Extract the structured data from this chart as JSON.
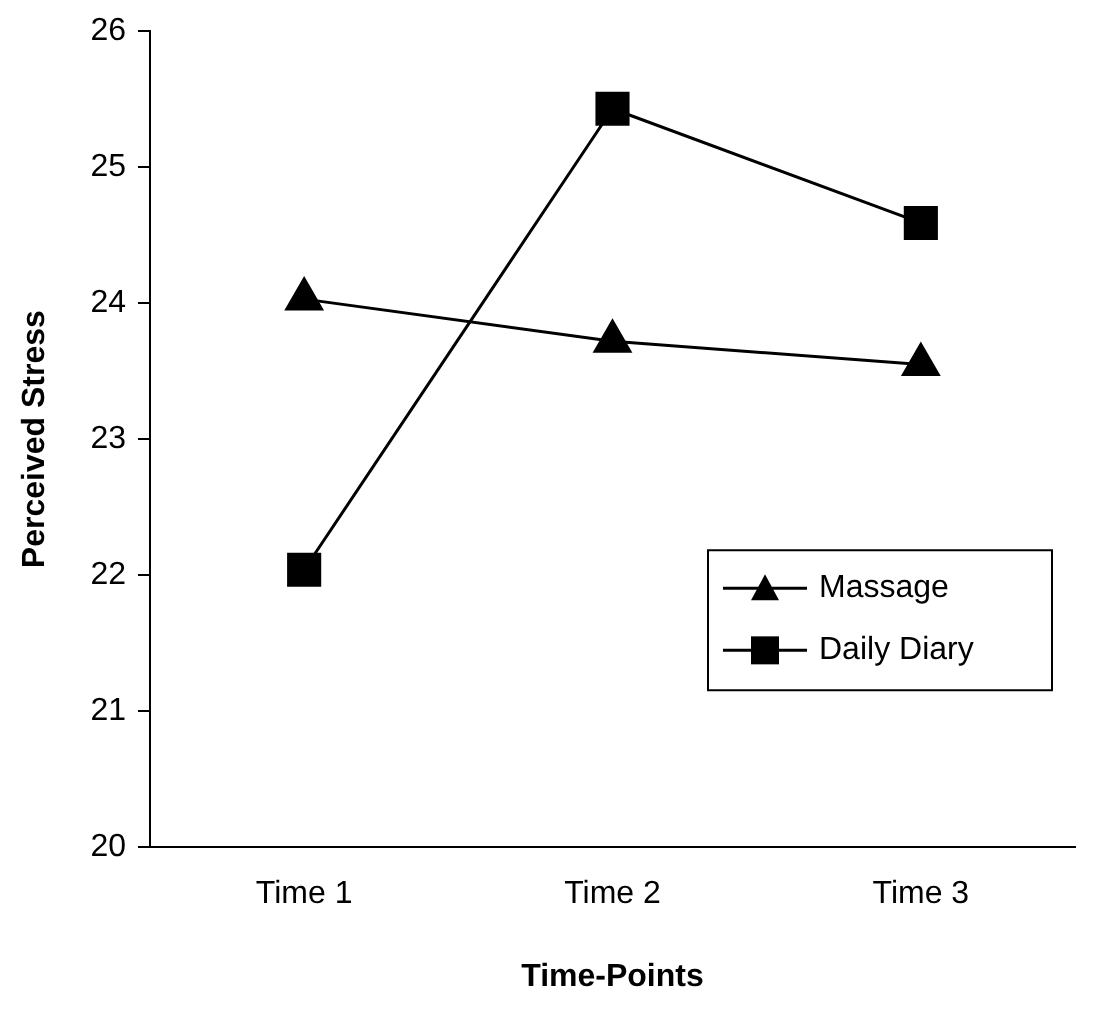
{
  "chart_data": {
    "type": "line",
    "xlabel": "Time-Points",
    "ylabel": "Perceived Stress",
    "categories": [
      "Time 1",
      "Time 2",
      "Time 3"
    ],
    "series": [
      {
        "name": "Massage",
        "color": "#000000",
        "marker": "triangle",
        "values": [
          24.03,
          23.72,
          23.55
        ]
      },
      {
        "name": "Daily Diary",
        "color": "#000000",
        "marker": "square",
        "values": [
          22.04,
          25.43,
          24.59
        ]
      }
    ],
    "ylim": [
      20,
      26
    ],
    "yticks": [
      20,
      21,
      22,
      23,
      24,
      25,
      26
    ],
    "grid": false,
    "legend": "right",
    "line_style": "solid"
  }
}
